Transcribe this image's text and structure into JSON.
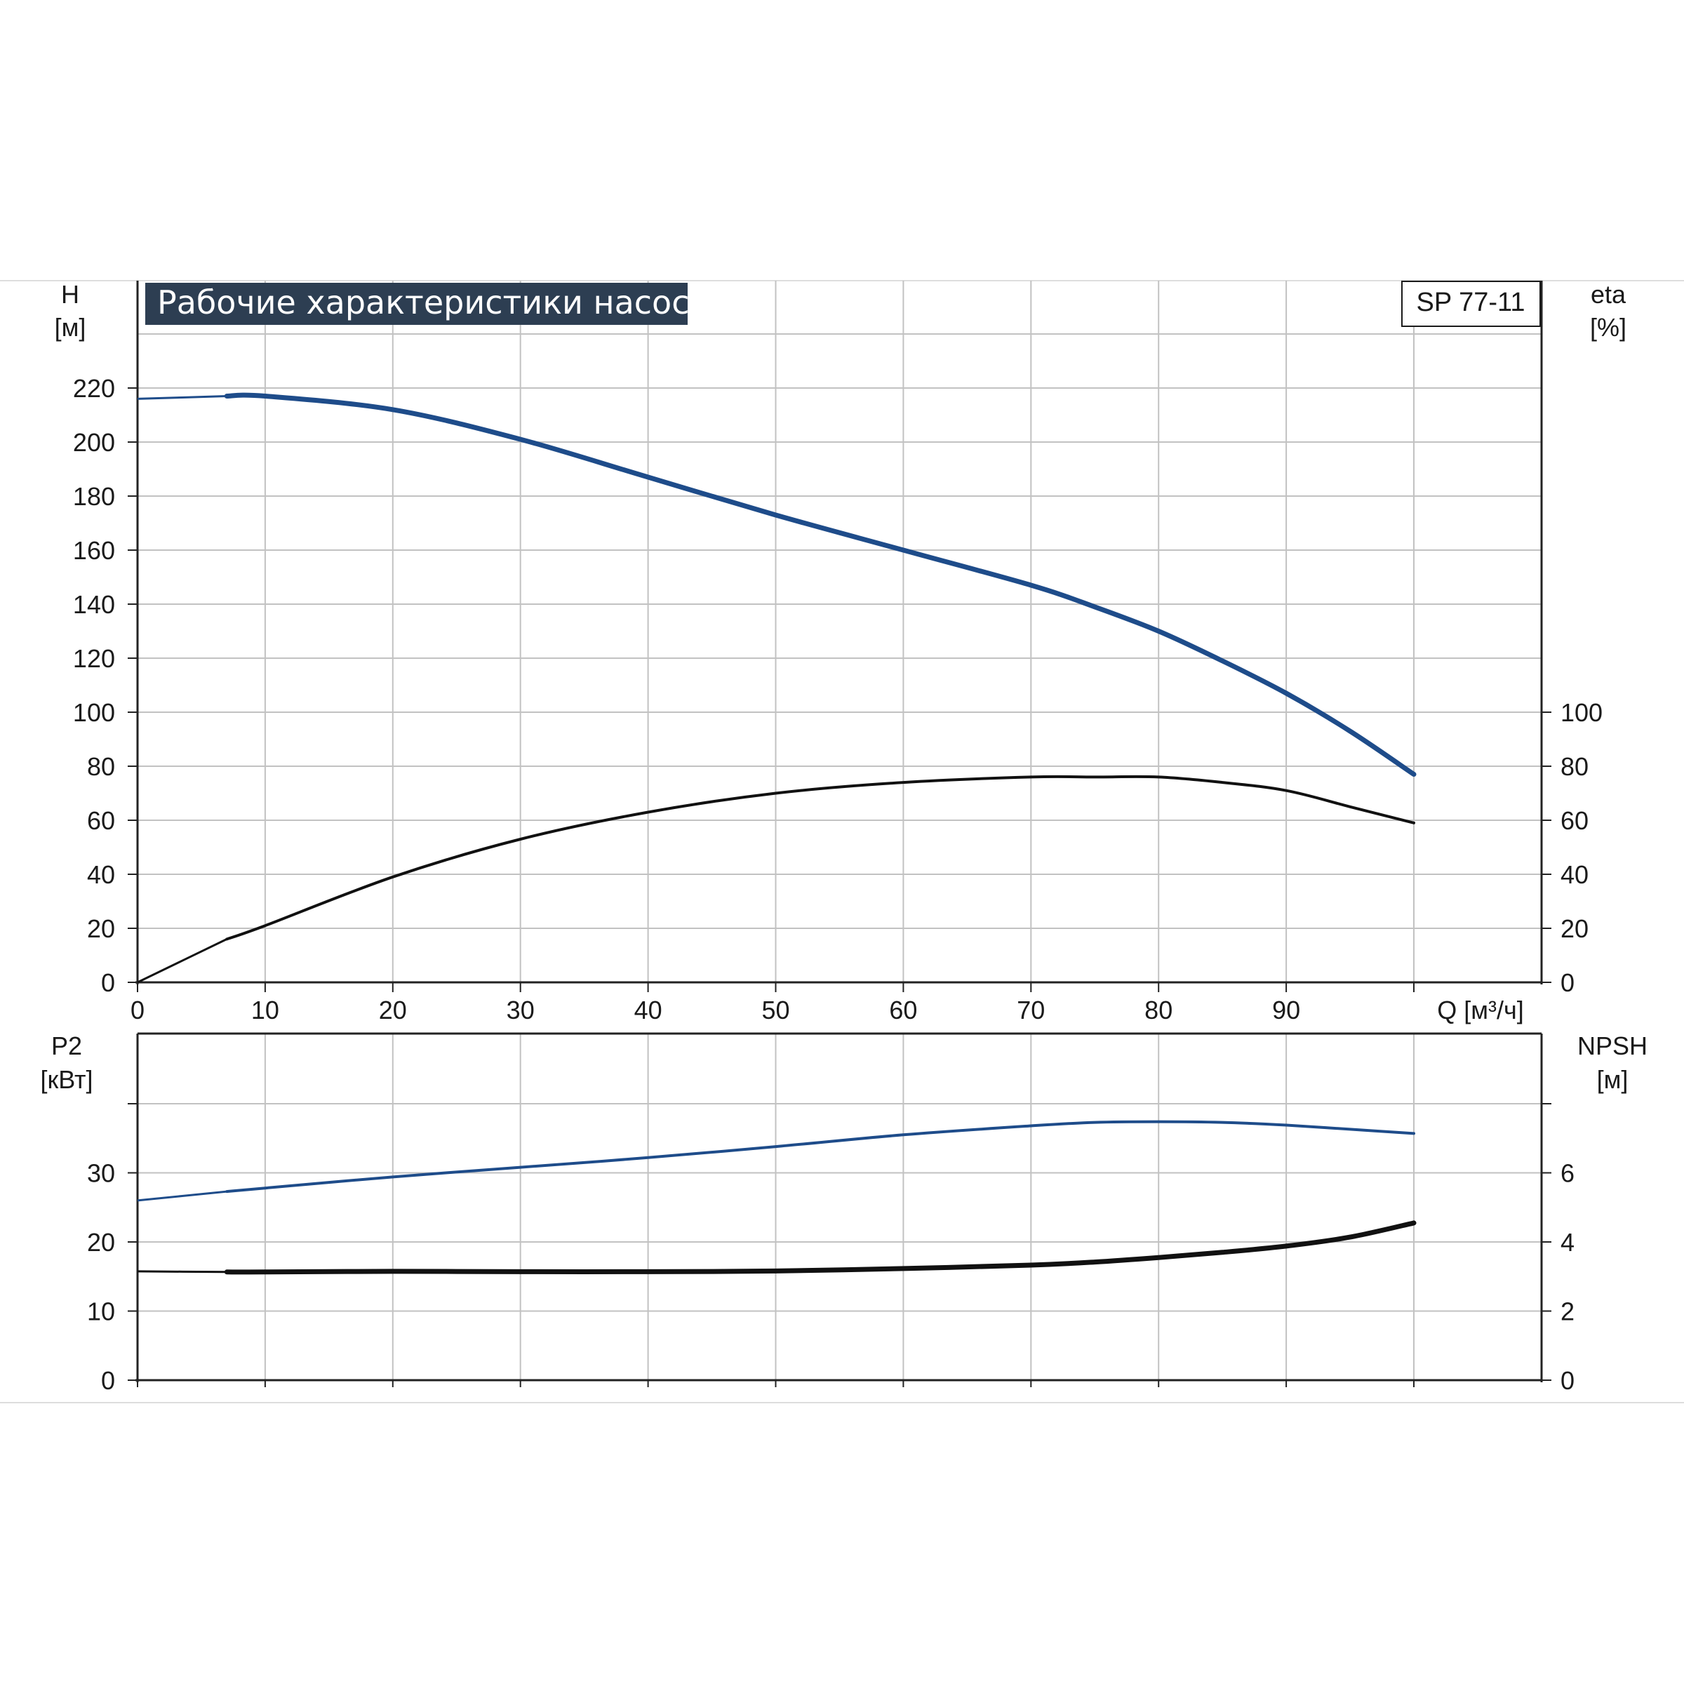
{
  "chart_title": "Рабочие характеристики насоса",
  "model_label": "SP 77-11",
  "colors": {
    "title_bg": "#2d3e52",
    "grid": "#c2c2c2",
    "blue": "#1e4c8a",
    "black": "#111111"
  },
  "chart_data": [
    {
      "type": "line",
      "title": "Рабочие характеристики насоса",
      "model": "SP 77-11",
      "xlabel": "Q [м³/ч]",
      "xlim": [
        0,
        100
      ],
      "x_ticks": [
        "0",
        "10",
        "20",
        "30",
        "40",
        "50",
        "60",
        "70",
        "80",
        "90"
      ],
      "left_axis": {
        "label": "H",
        "unit": "[м]",
        "ylim": [
          0,
          220
        ],
        "ticks": [
          "0",
          "20",
          "40",
          "60",
          "80",
          "100",
          "120",
          "140",
          "160",
          "180",
          "200",
          "220"
        ]
      },
      "right_axis": {
        "label": "eta",
        "unit": "[%]",
        "ylim": [
          0,
          100
        ],
        "ticks": [
          "0",
          "20",
          "40",
          "60",
          "80",
          "100"
        ]
      },
      "grid": true,
      "series": [
        {
          "axis": "left",
          "color": "#1e4c8a",
          "x": [
            0,
            7,
            10,
            20,
            30,
            40,
            50,
            60,
            70,
            75,
            80,
            85,
            90,
            95,
            100
          ],
          "y": [
            216,
            217,
            217,
            212,
            201,
            187,
            173,
            160,
            147,
            139,
            130,
            119,
            107,
            93,
            77
          ]
        },
        {
          "axis": "right",
          "color": "#111111",
          "x": [
            0,
            7,
            10,
            20,
            30,
            40,
            50,
            60,
            70,
            75,
            80,
            85,
            90,
            95,
            100
          ],
          "y": [
            0,
            16,
            21,
            39,
            53,
            63,
            70,
            74,
            76,
            76,
            76,
            74,
            71,
            65,
            59
          ]
        }
      ]
    },
    {
      "type": "line",
      "xlim": [
        0,
        100
      ],
      "left_axis": {
        "label": "P2",
        "unit": "[кВт]",
        "ylim": [
          0,
          40
        ],
        "ticks": [
          "0",
          "10",
          "20",
          "30"
        ]
      },
      "right_axis": {
        "label": "NPSH",
        "unit": "[м]",
        "ylim": [
          0,
          8
        ],
        "ticks": [
          "0",
          "2",
          "4",
          "6"
        ]
      },
      "grid": true,
      "series": [
        {
          "axis": "left",
          "color": "#1e4c8a",
          "x": [
            0,
            7,
            10,
            20,
            30,
            40,
            50,
            60,
            70,
            75,
            80,
            85,
            90,
            95,
            100
          ],
          "y": [
            26,
            27.3,
            27.8,
            29.4,
            30.8,
            32.2,
            33.8,
            35.5,
            36.8,
            37.3,
            37.4,
            37.3,
            36.9,
            36.3,
            35.7
          ]
        },
        {
          "axis": "right",
          "color": "#111111",
          "x": [
            0,
            7,
            10,
            20,
            30,
            40,
            50,
            60,
            70,
            75,
            80,
            85,
            90,
            95,
            100
          ],
          "y": [
            3.15,
            3.13,
            3.13,
            3.15,
            3.14,
            3.14,
            3.16,
            3.23,
            3.33,
            3.42,
            3.55,
            3.7,
            3.88,
            4.14,
            4.55
          ]
        }
      ]
    }
  ]
}
